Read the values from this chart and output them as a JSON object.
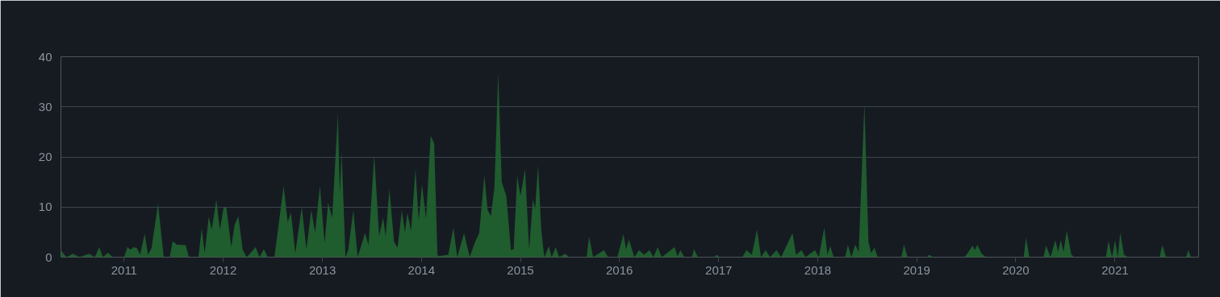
{
  "chart_data": {
    "type": "area",
    "x": [
      "2010-05-13",
      "2010-05-15",
      "2010-06-03",
      "2010-06-26",
      "2010-07-20",
      "2010-08-25",
      "2010-09-15",
      "2010-10-01",
      "2010-10-15",
      "2010-11-02",
      "2010-11-20",
      "2011-01-01",
      "2011-01-13",
      "2011-01-25",
      "2011-02-05",
      "2011-02-17",
      "2011-03-01",
      "2011-03-18",
      "2011-03-30",
      "2011-04-12",
      "2011-05-06",
      "2011-05-27",
      "2011-06-18",
      "2011-06-29",
      "2011-07-14",
      "2011-08-16",
      "2011-08-28",
      "2011-10-02",
      "2011-10-14",
      "2011-10-25",
      "2011-11-09",
      "2011-11-20",
      "2011-12-07",
      "2011-12-20",
      "2012-01-03",
      "2012-01-13",
      "2012-01-31",
      "2012-02-12",
      "2012-02-26",
      "2012-03-13",
      "2012-03-28",
      "2012-04-30",
      "2012-05-14",
      "2012-05-30",
      "2012-06-14",
      "2012-07-08",
      "2012-08-11",
      "2012-08-26",
      "2012-09-07",
      "2012-09-23",
      "2012-10-17",
      "2012-11-03",
      "2012-11-21",
      "2012-12-05",
      "2012-12-23",
      "2013-01-09",
      "2013-01-22",
      "2013-02-06",
      "2013-02-27",
      "2013-03-06",
      "2013-03-13",
      "2013-03-27",
      "2013-04-06",
      "2013-04-25",
      "2013-05-11",
      "2013-06-07",
      "2013-06-20",
      "2013-07-11",
      "2013-07-29",
      "2013-08-13",
      "2013-08-22",
      "2013-09-05",
      "2013-09-22",
      "2013-10-05",
      "2013-10-21",
      "2013-11-01",
      "2013-11-10",
      "2013-11-24",
      "2013-12-10",
      "2013-12-22",
      "2014-01-03",
      "2014-01-18",
      "2014-02-04",
      "2014-02-17",
      "2014-03-01",
      "2014-03-05",
      "2014-04-10",
      "2014-04-29",
      "2014-05-13",
      "2014-06-07",
      "2014-06-28",
      "2014-07-18",
      "2014-08-02",
      "2014-08-21",
      "2014-09-02",
      "2014-09-14",
      "2014-09-27",
      "2014-10-11",
      "2014-10-24",
      "2014-11-10",
      "2014-11-27",
      "2014-12-07",
      "2014-12-20",
      "2015-01-01",
      "2015-01-18",
      "2015-02-02",
      "2015-02-16",
      "2015-02-24",
      "2015-03-07",
      "2015-03-19",
      "2015-03-30",
      "2015-04-16",
      "2015-04-26",
      "2015-05-11",
      "2015-05-24",
      "2015-06-15",
      "2015-06-30",
      "2015-08-24",
      "2015-09-02",
      "2015-09-11",
      "2015-09-26",
      "2015-11-05",
      "2015-11-20",
      "2015-12-24",
      "2016-01-16",
      "2016-01-25",
      "2016-02-05",
      "2016-02-25",
      "2016-03-13",
      "2016-04-01",
      "2016-04-21",
      "2016-05-05",
      "2016-05-21",
      "2016-06-05",
      "2016-07-22",
      "2016-08-02",
      "2016-08-13",
      "2016-08-27",
      "2016-09-24",
      "2016-10-02",
      "2016-10-16",
      "2016-12-16",
      "2016-12-24",
      "2017-01-05",
      "2017-03-29",
      "2017-04-13",
      "2017-05-03",
      "2017-05-22",
      "2017-06-06",
      "2017-06-23",
      "2017-07-09",
      "2017-08-02",
      "2017-08-19",
      "2017-09-30",
      "2017-10-13",
      "2017-11-02",
      "2017-11-17",
      "2017-12-22",
      "2018-01-05",
      "2018-01-25",
      "2018-02-06",
      "2018-02-16",
      "2018-03-01",
      "2018-04-12",
      "2018-04-22",
      "2018-05-05",
      "2018-05-19",
      "2018-06-01",
      "2018-06-22",
      "2018-07-07",
      "2018-07-17",
      "2018-07-29",
      "2018-08-10",
      "2018-11-05",
      "2018-11-15",
      "2018-11-28",
      "2019-02-08",
      "2019-02-16",
      "2019-03-01",
      "2019-06-25",
      "2019-07-03",
      "2019-07-26",
      "2019-08-03",
      "2019-08-12",
      "2019-08-27",
      "2019-09-12",
      "2020-01-30",
      "2020-02-08",
      "2020-02-20",
      "2020-04-12",
      "2020-04-22",
      "2020-05-08",
      "2020-05-26",
      "2020-06-05",
      "2020-06-15",
      "2020-06-25",
      "2020-07-07",
      "2020-07-24",
      "2020-08-04",
      "2020-11-28",
      "2020-12-08",
      "2020-12-21",
      "2021-01-01",
      "2021-01-11",
      "2021-01-20",
      "2021-02-03",
      "2021-02-18",
      "2021-06-14",
      "2021-06-24",
      "2021-07-08",
      "2021-09-20",
      "2021-09-28",
      "2021-10-08",
      "2021-11-05"
    ],
    "series": [
      {
        "color": "#1f5c2e",
        "values": [
          1.2,
          1.2,
          0,
          0.7,
          0,
          0.7,
          0,
          2.0,
          0,
          0.9,
          0,
          0,
          2.0,
          1.5,
          2.0,
          1.8,
          0.5,
          4.7,
          0.5,
          1.8,
          10.7,
          0,
          0,
          3.2,
          2.5,
          2.4,
          0,
          0,
          5.8,
          0.8,
          8.1,
          5.5,
          11.5,
          5.5,
          10,
          9.9,
          2,
          6.4,
          8.2,
          1.5,
          0,
          2,
          0,
          1.6,
          0,
          0,
          14.2,
          7,
          8.9,
          0.8,
          10,
          1.6,
          9.4,
          5,
          14.3,
          2.8,
          10.9,
          7.9,
          28.6,
          12.7,
          21.1,
          0,
          1.4,
          9.4,
          0,
          4.8,
          2.5,
          20.4,
          4.3,
          7.9,
          4.2,
          13.6,
          3.1,
          1.9,
          9.4,
          5,
          8.8,
          5.3,
          17.6,
          7.3,
          14.5,
          7.7,
          24.2,
          22.7,
          0.5,
          0.2,
          0.5,
          5.9,
          0,
          4.8,
          0,
          3.1,
          4.8,
          16.3,
          9.4,
          8.2,
          13.9,
          36.8,
          15,
          12.2,
          1.4,
          1.6,
          16.3,
          12.2,
          17.6,
          1.6,
          11.6,
          9.6,
          18.3,
          5.3,
          0,
          2.2,
          0,
          2,
          0,
          0.7,
          0,
          0,
          0,
          4.1,
          0,
          1.4,
          0,
          0,
          4.6,
          1.6,
          3.5,
          0,
          1.4,
          0.5,
          1.4,
          0,
          2,
          0,
          2,
          0.2,
          1.4,
          0,
          0,
          1.6,
          0,
          0,
          0.5,
          0,
          0,
          1.4,
          0.5,
          5.5,
          0,
          1.4,
          0,
          1.4,
          0,
          4.8,
          0.5,
          1.4,
          0,
          1.4,
          0,
          5.9,
          0.5,
          2.2,
          0,
          0,
          2.5,
          0,
          2.5,
          1.1,
          30.6,
          3.1,
          0.8,
          1.9,
          0,
          0,
          2.5,
          0,
          0,
          0.5,
          0,
          0,
          0.5,
          2.3,
          1.4,
          2.5,
          0.8,
          0,
          0,
          3.9,
          0,
          0,
          2.3,
          0,
          3.4,
          1.1,
          3.4,
          1.1,
          5.3,
          0.5,
          0,
          0,
          3.2,
          0,
          3.4,
          0,
          4.9,
          0.5,
          0,
          0,
          2.4,
          0,
          0,
          1.4,
          0,
          0
        ]
      }
    ],
    "xlim": [
      "2010-05-13",
      "2021-11-05"
    ],
    "xticks": [
      {
        "value": "2011-01-01",
        "label": "2011"
      },
      {
        "value": "2012-01-01",
        "label": "2012"
      },
      {
        "value": "2013-01-01",
        "label": "2013"
      },
      {
        "value": "2014-01-01",
        "label": "2014"
      },
      {
        "value": "2015-01-01",
        "label": "2015"
      },
      {
        "value": "2016-01-01",
        "label": "2016"
      },
      {
        "value": "2017-01-01",
        "label": "2017"
      },
      {
        "value": "2018-01-01",
        "label": "2018"
      },
      {
        "value": "2019-01-01",
        "label": "2019"
      },
      {
        "value": "2020-01-01",
        "label": "2020"
      },
      {
        "value": "2021-01-01",
        "label": "2021"
      }
    ],
    "ylim": [
      0,
      40
    ],
    "yticks": [
      0,
      10,
      20,
      30,
      40
    ],
    "grid": "y"
  }
}
